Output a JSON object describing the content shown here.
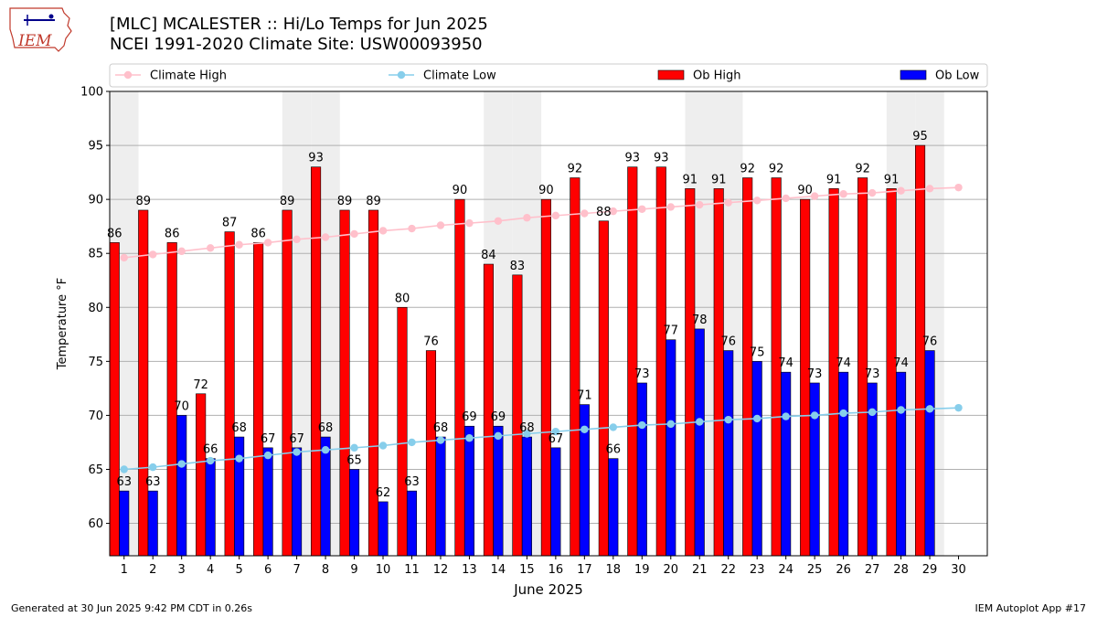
{
  "logo": {
    "text": "IEM"
  },
  "title": {
    "line1": "[MLC] MCALESTER :: Hi/Lo Temps for Jun 2025",
    "line2": "NCEI 1991-2020 Climate Site: USW00093950"
  },
  "footer": {
    "left": "Generated at 30 Jun 2025 9:42 PM CDT in 0.26s",
    "right": "IEM Autoplot App #17"
  },
  "colors": {
    "ob_high": "#ff0000",
    "ob_low": "#0000ff",
    "climate_high": "#ffc0cb",
    "climate_low": "#87ceeb",
    "weekend_shade": "#eeeeee"
  },
  "chart_data": {
    "type": "bar",
    "xlabel": "June 2025",
    "ylabel": "Temperature °F",
    "ylim": [
      57,
      100
    ],
    "yticks": [
      60,
      65,
      70,
      75,
      80,
      85,
      90,
      95,
      100
    ],
    "grid": true,
    "legend_position": "top",
    "categories": [
      "1",
      "2",
      "3",
      "4",
      "5",
      "6",
      "7",
      "8",
      "9",
      "10",
      "11",
      "12",
      "13",
      "14",
      "15",
      "16",
      "17",
      "18",
      "19",
      "20",
      "21",
      "22",
      "23",
      "24",
      "25",
      "26",
      "27",
      "28",
      "29",
      "30"
    ],
    "shaded_days": [
      1,
      7,
      8,
      14,
      15,
      21,
      22,
      28,
      29
    ],
    "series": [
      {
        "name": "Ob High",
        "kind": "bar",
        "values": [
          86,
          89,
          86,
          72,
          87,
          86,
          89,
          93,
          89,
          89,
          80,
          76,
          90,
          84,
          83,
          90,
          92,
          88,
          93,
          93,
          91,
          91,
          92,
          92,
          90,
          91,
          92,
          91,
          95,
          null
        ]
      },
      {
        "name": "Ob Low",
        "kind": "bar",
        "values": [
          63,
          63,
          70,
          66,
          68,
          67,
          67,
          68,
          65,
          62,
          63,
          68,
          69,
          69,
          68,
          67,
          71,
          66,
          73,
          77,
          78,
          76,
          75,
          74,
          73,
          74,
          73,
          74,
          76,
          null
        ]
      },
      {
        "name": "Climate High",
        "kind": "line",
        "values": [
          84.6,
          84.9,
          85.2,
          85.5,
          85.8,
          86.0,
          86.3,
          86.5,
          86.8,
          87.1,
          87.3,
          87.6,
          87.8,
          88.0,
          88.3,
          88.5,
          88.7,
          88.9,
          89.1,
          89.3,
          89.5,
          89.7,
          89.9,
          90.1,
          90.3,
          90.5,
          90.6,
          90.8,
          91.0,
          91.1
        ]
      },
      {
        "name": "Climate Low",
        "kind": "line",
        "values": [
          65.0,
          65.2,
          65.5,
          65.8,
          66.0,
          66.3,
          66.6,
          66.8,
          67.0,
          67.2,
          67.5,
          67.7,
          67.9,
          68.1,
          68.3,
          68.5,
          68.7,
          68.9,
          69.1,
          69.2,
          69.4,
          69.6,
          69.7,
          69.9,
          70.0,
          70.2,
          70.3,
          70.5,
          70.6,
          70.7
        ]
      }
    ]
  }
}
